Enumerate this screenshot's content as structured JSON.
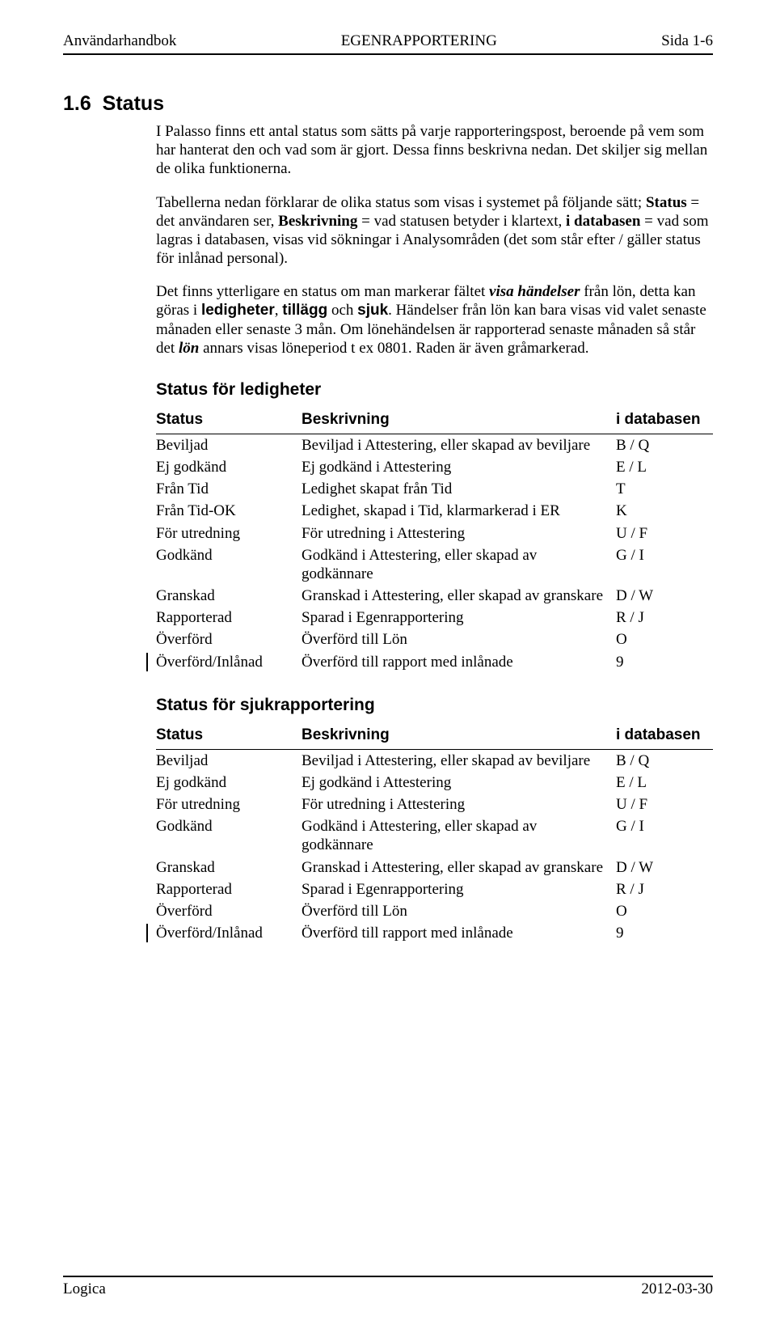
{
  "header": {
    "left": "Användarhandbok",
    "center": "EGENRAPPORTERING",
    "right": "Sida 1-6"
  },
  "section": {
    "number": "1.6",
    "title": "Status"
  },
  "paragraphs": {
    "p1": "I Palasso finns ett antal status som sätts på varje rapporteringspost, beroende på vem som har hanterat den och vad som är gjort. Dessa finns beskrivna nedan. Det skiljer sig mellan de olika funktionerna.",
    "p2_a": "Tabellerna nedan förklarar de olika status som visas i systemet på följande sätt; ",
    "p2_status": "Status",
    "p2_b": " = det användaren ser, ",
    "p2_besk": "Beskrivning",
    "p2_c": " = vad statusen betyder i klartext, ",
    "p2_db": "i databasen",
    "p2_d": " = vad som lagras i databasen, visas vid sökningar i Analysområden (det som står efter / gäller status för inlånad personal).",
    "p3_a": "Det finns ytterligare en status om man markerar fältet ",
    "p3_visa": "visa händelser",
    "p3_b": " från lön, detta kan göras i ",
    "p3_led": "ledigheter",
    "p3_c": ", ",
    "p3_till": "tillägg",
    "p3_d": " och ",
    "p3_sjuk": "sjuk",
    "p3_e": ". Händelser från lön kan bara visas vid valet senaste månaden eller senaste 3 mån. Om lönehändelsen är rapporterad senaste månaden så står det ",
    "p3_lon": "lön",
    "p3_f": " annars visas löneperiod t ex 0801. Raden är även gråmarkerad."
  },
  "tables": {
    "headers": {
      "status": "Status",
      "beskrivning": "Beskrivning",
      "db": "i databasen"
    },
    "ledigheter": {
      "title": "Status för ledigheter",
      "rows": [
        {
          "s": "Beviljad",
          "b": "Beviljad i Attestering, eller skapad av beviljare",
          "d": "B / Q"
        },
        {
          "s": "Ej godkänd",
          "b": "Ej godkänd i Attestering",
          "d": "E / L"
        },
        {
          "s": "Från Tid",
          "b": "Ledighet skapat från Tid",
          "d": "T"
        },
        {
          "s": "Från Tid-OK",
          "b": "Ledighet, skapad i Tid, klarmarkerad i ER",
          "d": "K"
        },
        {
          "s": "För utredning",
          "b": "För utredning i Attestering",
          "d": "U / F"
        },
        {
          "s": "Godkänd",
          "b": "Godkänd i Attestering, eller skapad av godkännare",
          "d": "G / I"
        },
        {
          "s": "Granskad",
          "b": "Granskad i Attestering, eller skapad av granskare",
          "d": "D / W"
        },
        {
          "s": "Rapporterad",
          "b": "Sparad i Egenrapportering",
          "d": "R / J"
        },
        {
          "s": "Överförd",
          "b": "Överförd till Lön",
          "d": "O"
        },
        {
          "s": "Överförd/Inlånad",
          "b": "Överförd till rapport med inlånade",
          "d": "9",
          "changebar": true
        }
      ]
    },
    "sjuk": {
      "title": "Status för sjukrapportering",
      "rows": [
        {
          "s": "Beviljad",
          "b": "Beviljad i Attestering, eller skapad av beviljare",
          "d": "B / Q"
        },
        {
          "s": "Ej godkänd",
          "b": "Ej godkänd i Attestering",
          "d": "E / L"
        },
        {
          "s": "För utredning",
          "b": "För utredning i Attestering",
          "d": "U / F"
        },
        {
          "s": "Godkänd",
          "b": "Godkänd i Attestering, eller skapad av godkännare",
          "d": "G / I"
        },
        {
          "s": "Granskad",
          "b": "Granskad i Attestering, eller skapad av granskare",
          "d": "D / W"
        },
        {
          "s": "Rapporterad",
          "b": "Sparad i Egenrapportering",
          "d": "R / J"
        },
        {
          "s": "Överförd",
          "b": "Överförd till Lön",
          "d": "O"
        },
        {
          "s": "Överförd/Inlånad",
          "b": "Överförd till rapport med inlånade",
          "d": "9",
          "changebar": true
        }
      ]
    }
  },
  "footer": {
    "left": "Logica",
    "right": "2012-03-30"
  }
}
